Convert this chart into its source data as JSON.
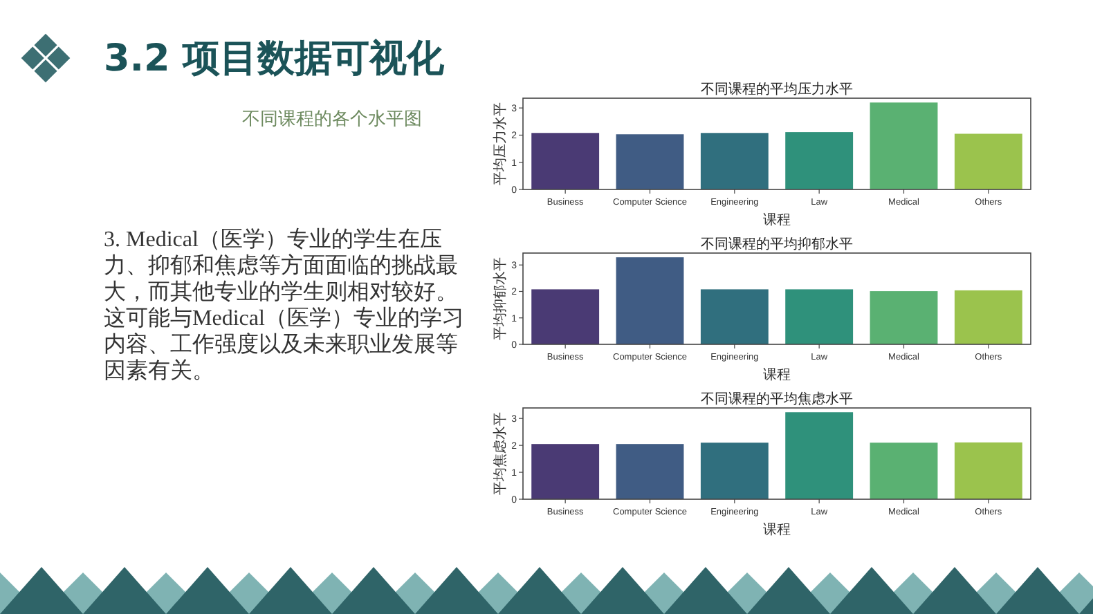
{
  "chart_data": [
    {
      "type": "other",
      "title": "3.2 项目数据可视化",
      "subtitle": "不同课程的各个水平图",
      "annotations": [
        "3. Medical（医学）专业的学生在压力、抑郁和焦虑等方面面临的挑战最大，而其他专业的学生则相对较好。这可能与Medical（医学）专业的学习内容、工作强度以及未来职业发展等因素有关。"
      ]
    },
    {
      "type": "bar",
      "title": "不同课程的平均压力水平",
      "xlabel": "课程",
      "ylabel": "平均压力水平",
      "categories": [
        "Business",
        "Computer Science",
        "Engineering",
        "Law",
        "Medical",
        "Others"
      ],
      "values": [
        2.08,
        2.03,
        2.08,
        2.11,
        3.2,
        2.05
      ],
      "colors": [
        "#4a3a74",
        "#405c84",
        "#306f7e",
        "#2f917b",
        "#5ab172",
        "#9bc34d"
      ],
      "ylim": [
        0,
        3.36
      ],
      "yticks": [
        0,
        1,
        2,
        3
      ]
    },
    {
      "type": "bar",
      "title": "不同课程的平均抑郁水平",
      "xlabel": "课程",
      "ylabel": "平均抑郁水平",
      "categories": [
        "Business",
        "Computer Science",
        "Engineering",
        "Law",
        "Medical",
        "Others"
      ],
      "values": [
        2.08,
        3.29,
        2.08,
        2.08,
        2.01,
        2.04
      ],
      "colors": [
        "#4a3a74",
        "#405c84",
        "#306f7e",
        "#2f917b",
        "#5ab172",
        "#9bc34d"
      ],
      "ylim": [
        0,
        3.45
      ],
      "yticks": [
        0,
        1,
        2,
        3
      ]
    },
    {
      "type": "bar",
      "title": "不同课程的平均焦虑水平",
      "xlabel": "课程",
      "ylabel": "平均焦虑水平",
      "categories": [
        "Business",
        "Computer Science",
        "Engineering",
        "Law",
        "Medical",
        "Others"
      ],
      "values": [
        2.05,
        2.05,
        2.1,
        3.23,
        2.1,
        2.11
      ],
      "colors": [
        "#4a3a74",
        "#405c84",
        "#306f7e",
        "#2f917b",
        "#5ab172",
        "#9bc34d"
      ],
      "ylim": [
        0,
        3.39
      ],
      "yticks": [
        0,
        1,
        2,
        3
      ]
    }
  ]
}
